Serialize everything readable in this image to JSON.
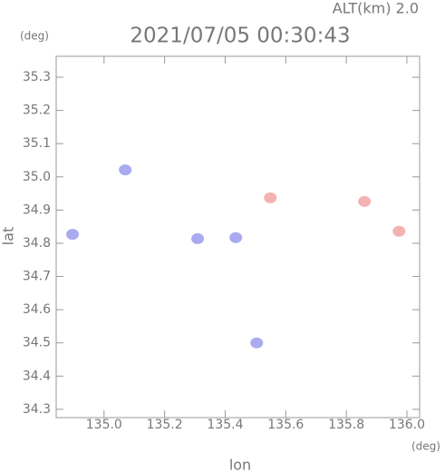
{
  "chart_data": {
    "type": "scatter",
    "title": "2021/07/05 00:30:43",
    "subtitle": "ALT(km) 2.0",
    "y_unit": "(deg)",
    "x_unit": "(deg)",
    "xlabel": "lon",
    "ylabel": "lat",
    "xlim": [
      134.842,
      136.042
    ],
    "ylim": [
      34.275,
      35.363
    ],
    "xticks": [
      {
        "value": 135,
        "label": "135.0"
      },
      135.2,
      135.4,
      135.6,
      135.8,
      {
        "value": 136,
        "label": "136.0"
      }
    ],
    "yticks": [
      34.3,
      34.4,
      34.5,
      34.6,
      34.7,
      34.8,
      34.9,
      {
        "value": 35,
        "label": "35.0"
      },
      35.1,
      35.2,
      35.3
    ],
    "series": [
      {
        "color": "#aaaaf0",
        "x": [
          134.896,
          135.07,
          135.309,
          135.435,
          135.504
        ],
        "values": [
          34.827,
          35.021,
          34.814,
          34.817,
          34.5
        ]
      },
      {
        "color": "#f4b3b3",
        "x": [
          135.549,
          135.86,
          135.974
        ],
        "values": [
          34.937,
          34.926,
          34.836
        ]
      }
    ]
  }
}
